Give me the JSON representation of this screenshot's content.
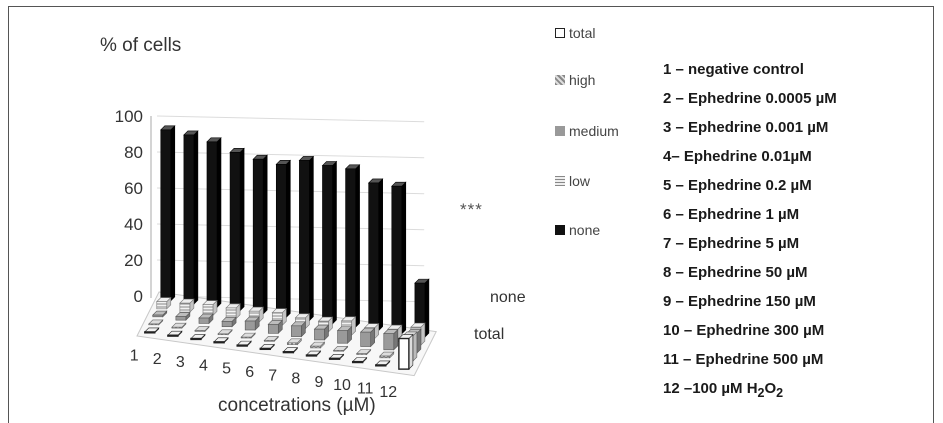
{
  "chart_data": {
    "type": "bar",
    "subtype": "3d-bar",
    "ylabel": "% of cells",
    "xlabel": "concetrations (µM)",
    "categories": [
      "1",
      "2",
      "3",
      "4",
      "5",
      "6",
      "7",
      "8",
      "9",
      "10",
      "11",
      "12"
    ],
    "depth_categories": [
      "total",
      "none"
    ],
    "ylim": [
      0,
      100
    ],
    "yticks": [
      0,
      20,
      40,
      60,
      80,
      100
    ],
    "series": [
      {
        "name": "total",
        "color": "#ffffff",
        "values": [
          0.5,
          0.5,
          0.5,
          0.5,
          0.5,
          0.5,
          0.5,
          0.5,
          0.5,
          0.5,
          0.5,
          17
        ]
      },
      {
        "name": "high",
        "color": "#bbbbbb",
        "values": [
          0.5,
          0.5,
          0.5,
          0.5,
          0.5,
          0.5,
          1,
          1,
          0.5,
          0.5,
          1,
          14
        ]
      },
      {
        "name": "medium",
        "color": "#999999",
        "values": [
          1,
          2,
          3,
          3,
          5,
          5,
          6,
          6,
          7,
          8,
          9,
          11
        ]
      },
      {
        "name": "low",
        "color": "#dddddd",
        "values": [
          4,
          5,
          6,
          6,
          6,
          7,
          6,
          6,
          8,
          6,
          7,
          10
        ]
      },
      {
        "name": "none",
        "color": "#111111",
        "values": [
          95,
          94,
          92,
          88,
          86,
          85,
          89,
          88,
          88,
          82,
          82,
          30
        ]
      }
    ],
    "legend_position": "right",
    "grid": true,
    "annotation": "***"
  },
  "key": [
    "1 – negative control",
    "2 – Ephedrine 0.0005 µM",
    "3 – Ephedrine 0.001 µM",
    "4–  Ephedrine 0.01µM",
    "5 – Ephedrine 0.2 µM",
    "6 – Ephedrine 1 µM",
    "7 – Ephedrine 5 µM",
    "8 – Ephedrine 50 µM",
    "9 – Ephedrine 150 µM",
    "10 – Ephedrine  300 µM",
    "11 – Ephedrine 500 µM"
  ],
  "key_last": {
    "prefix": "12 –100 µM H",
    "sub1": "2",
    "mid": "O",
    "sub2": "2"
  }
}
